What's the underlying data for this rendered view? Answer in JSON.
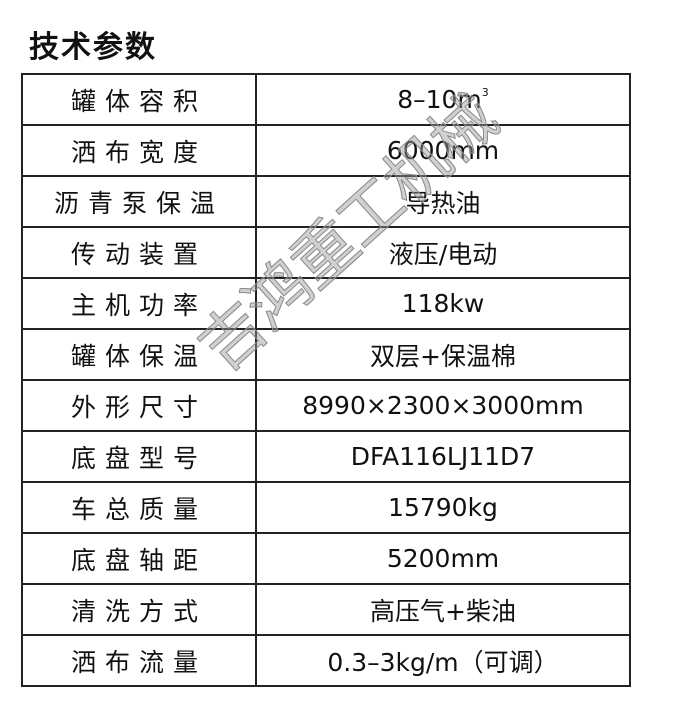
{
  "title": "技术参数",
  "rows": [
    {
      "label": "罐体容积",
      "value": "8–10m",
      "sup": "3"
    },
    {
      "label": "洒布宽度",
      "value": "6000mm"
    },
    {
      "label": "沥青泵保温",
      "value": "导热油"
    },
    {
      "label": "传动装置",
      "value": "液压/电动"
    },
    {
      "label": "主机功率",
      "value": "118kw"
    },
    {
      "label": "罐体保温",
      "value": "双层+保温棉"
    },
    {
      "label": "外形尺寸",
      "value": "8990×2300×3000mm"
    },
    {
      "label": "底盘型号",
      "value": "DFA116LJ11D7"
    },
    {
      "label": "车总质量",
      "value": "15790kg"
    },
    {
      "label": "底盘轴距",
      "value": "5200mm"
    },
    {
      "label": "清洗方式",
      "value": "高压气+柴油"
    },
    {
      "label": "洒布流量",
      "value": "0.3–3kg/m（可调）"
    }
  ],
  "watermark": "吉鸿重工机械"
}
